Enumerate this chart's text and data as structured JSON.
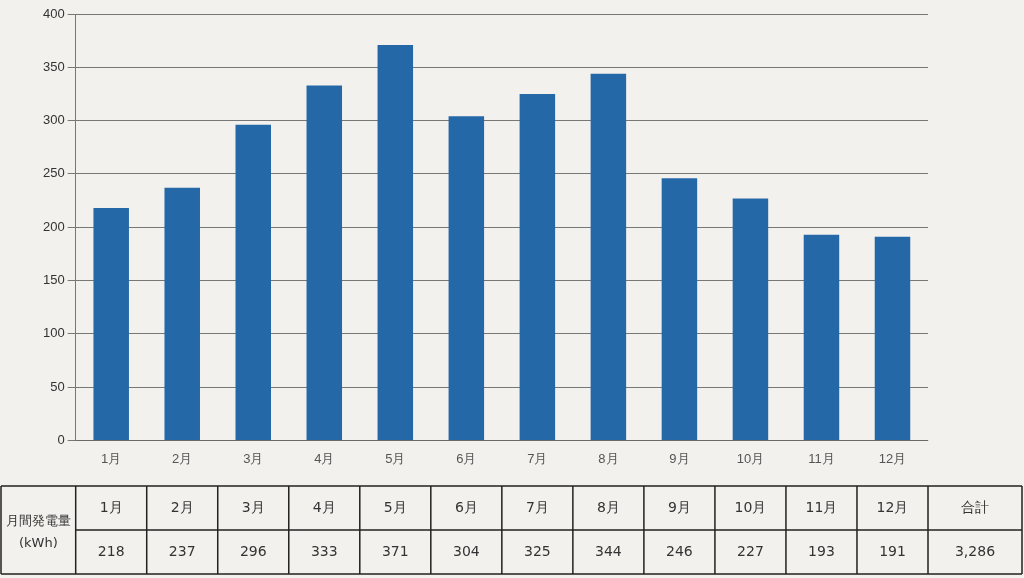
{
  "chart_data": {
    "type": "bar",
    "ylabel": "月間発電量(kWh)",
    "categories": [
      "1月",
      "2月",
      "3月",
      "4月",
      "5月",
      "6月",
      "7月",
      "8月",
      "9月",
      "10月",
      "11月",
      "12月"
    ],
    "values": [
      218,
      237,
      296,
      333,
      371,
      304,
      325,
      344,
      246,
      227,
      193,
      191
    ],
    "color": "#2468a8",
    "ylim": [
      0,
      400
    ],
    "yticks": [
      0,
      50,
      100,
      150,
      200,
      250,
      300,
      350,
      400
    ],
    "grid": "y",
    "legend": false,
    "data_labels": true,
    "annotations": [
      "合計",
      "3,286"
    ]
  }
}
